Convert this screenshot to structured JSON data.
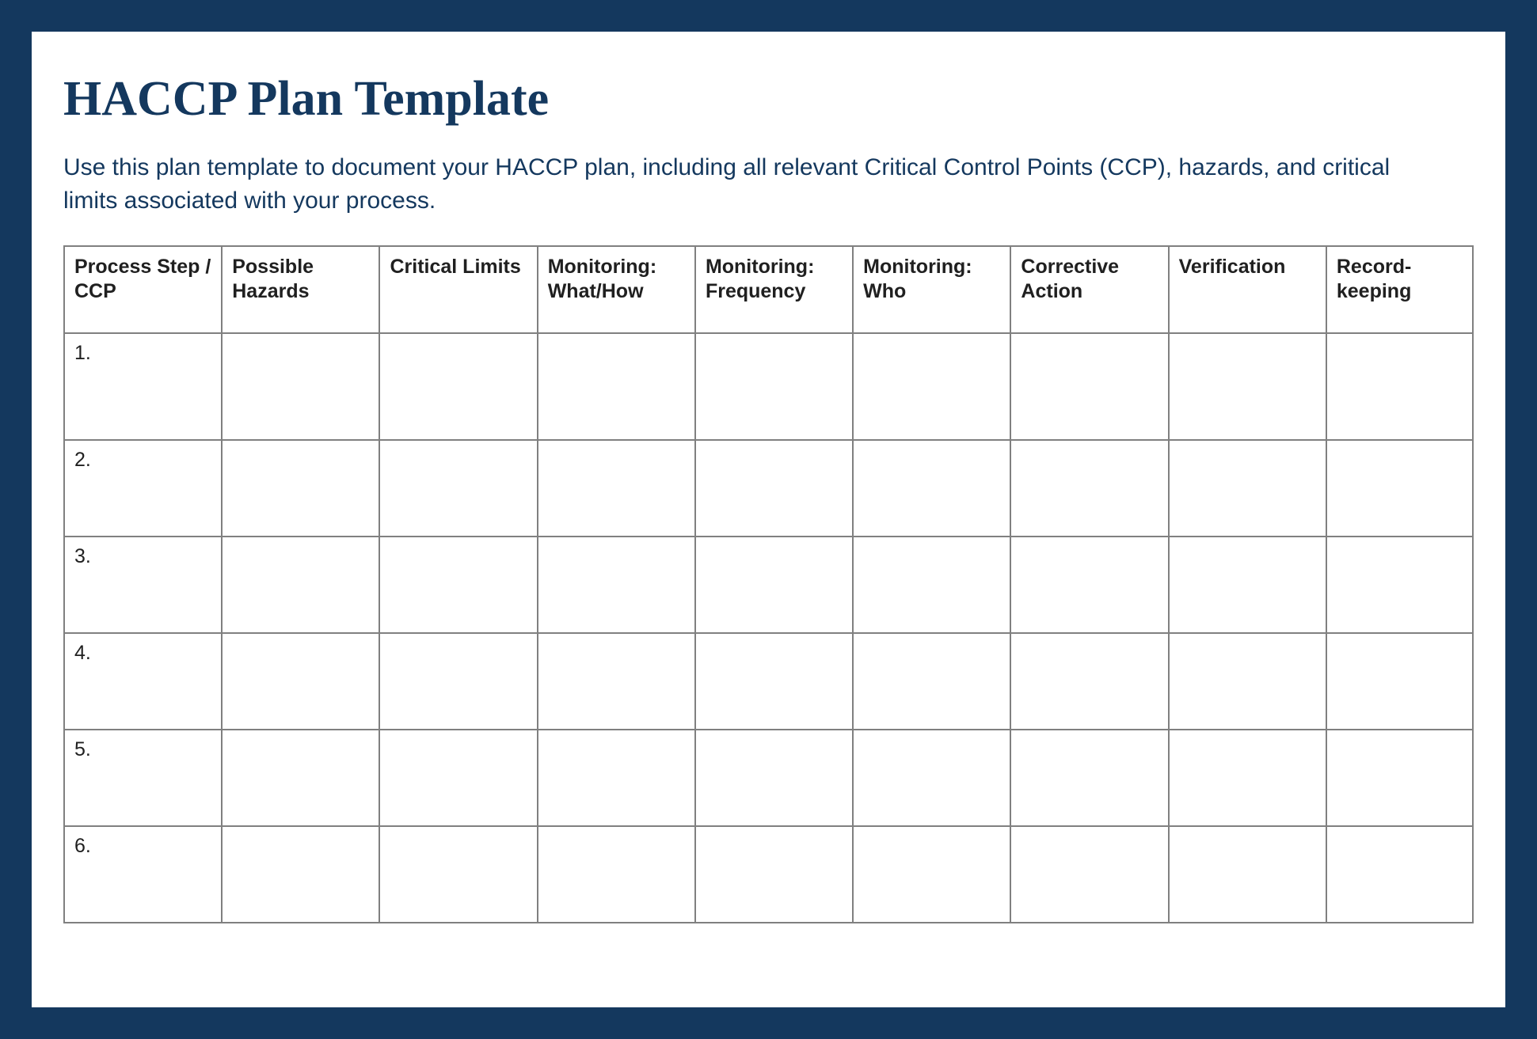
{
  "page": {
    "title": "HACCP Plan Template",
    "description": "Use this plan template to document your HACCP plan, including all relevant Critical Control Points (CCP), hazards, and critical limits associated with your process."
  },
  "table": {
    "columns": [
      "Process Step / CCP",
      "Possible Hazards",
      "Critical Limits",
      "Monitoring: What/How",
      "Monitoring: Frequency",
      "Monitoring: Who",
      "Corrective Action",
      "Verification",
      "Record-keeping"
    ],
    "column_widths_pct": [
      11.2,
      11.2,
      11.2,
      11.2,
      11.2,
      11.2,
      11.2,
      11.2,
      10.4
    ],
    "rows": [
      [
        "1.",
        "",
        "",
        "",
        "",
        "",
        "",
        "",
        ""
      ],
      [
        "2.",
        "",
        "",
        "",
        "",
        "",
        "",
        "",
        ""
      ],
      [
        "3.",
        "",
        "",
        "",
        "",
        "",
        "",
        "",
        ""
      ],
      [
        "4.",
        "",
        "",
        "",
        "",
        "",
        "",
        "",
        ""
      ],
      [
        "5.",
        "",
        "",
        "",
        "",
        "",
        "",
        "",
        ""
      ],
      [
        "6.",
        "",
        "",
        "",
        "",
        "",
        "",
        "",
        ""
      ]
    ]
  },
  "style": {
    "outer_background": "#14385e",
    "inner_background": "#ffffff",
    "title_color": "#14385e",
    "description_color": "#14385e",
    "border_color": "#808080",
    "text_color": "#202020",
    "title_fontsize": 62,
    "description_fontsize": 30,
    "header_fontsize": 25,
    "cell_fontsize": 25
  }
}
